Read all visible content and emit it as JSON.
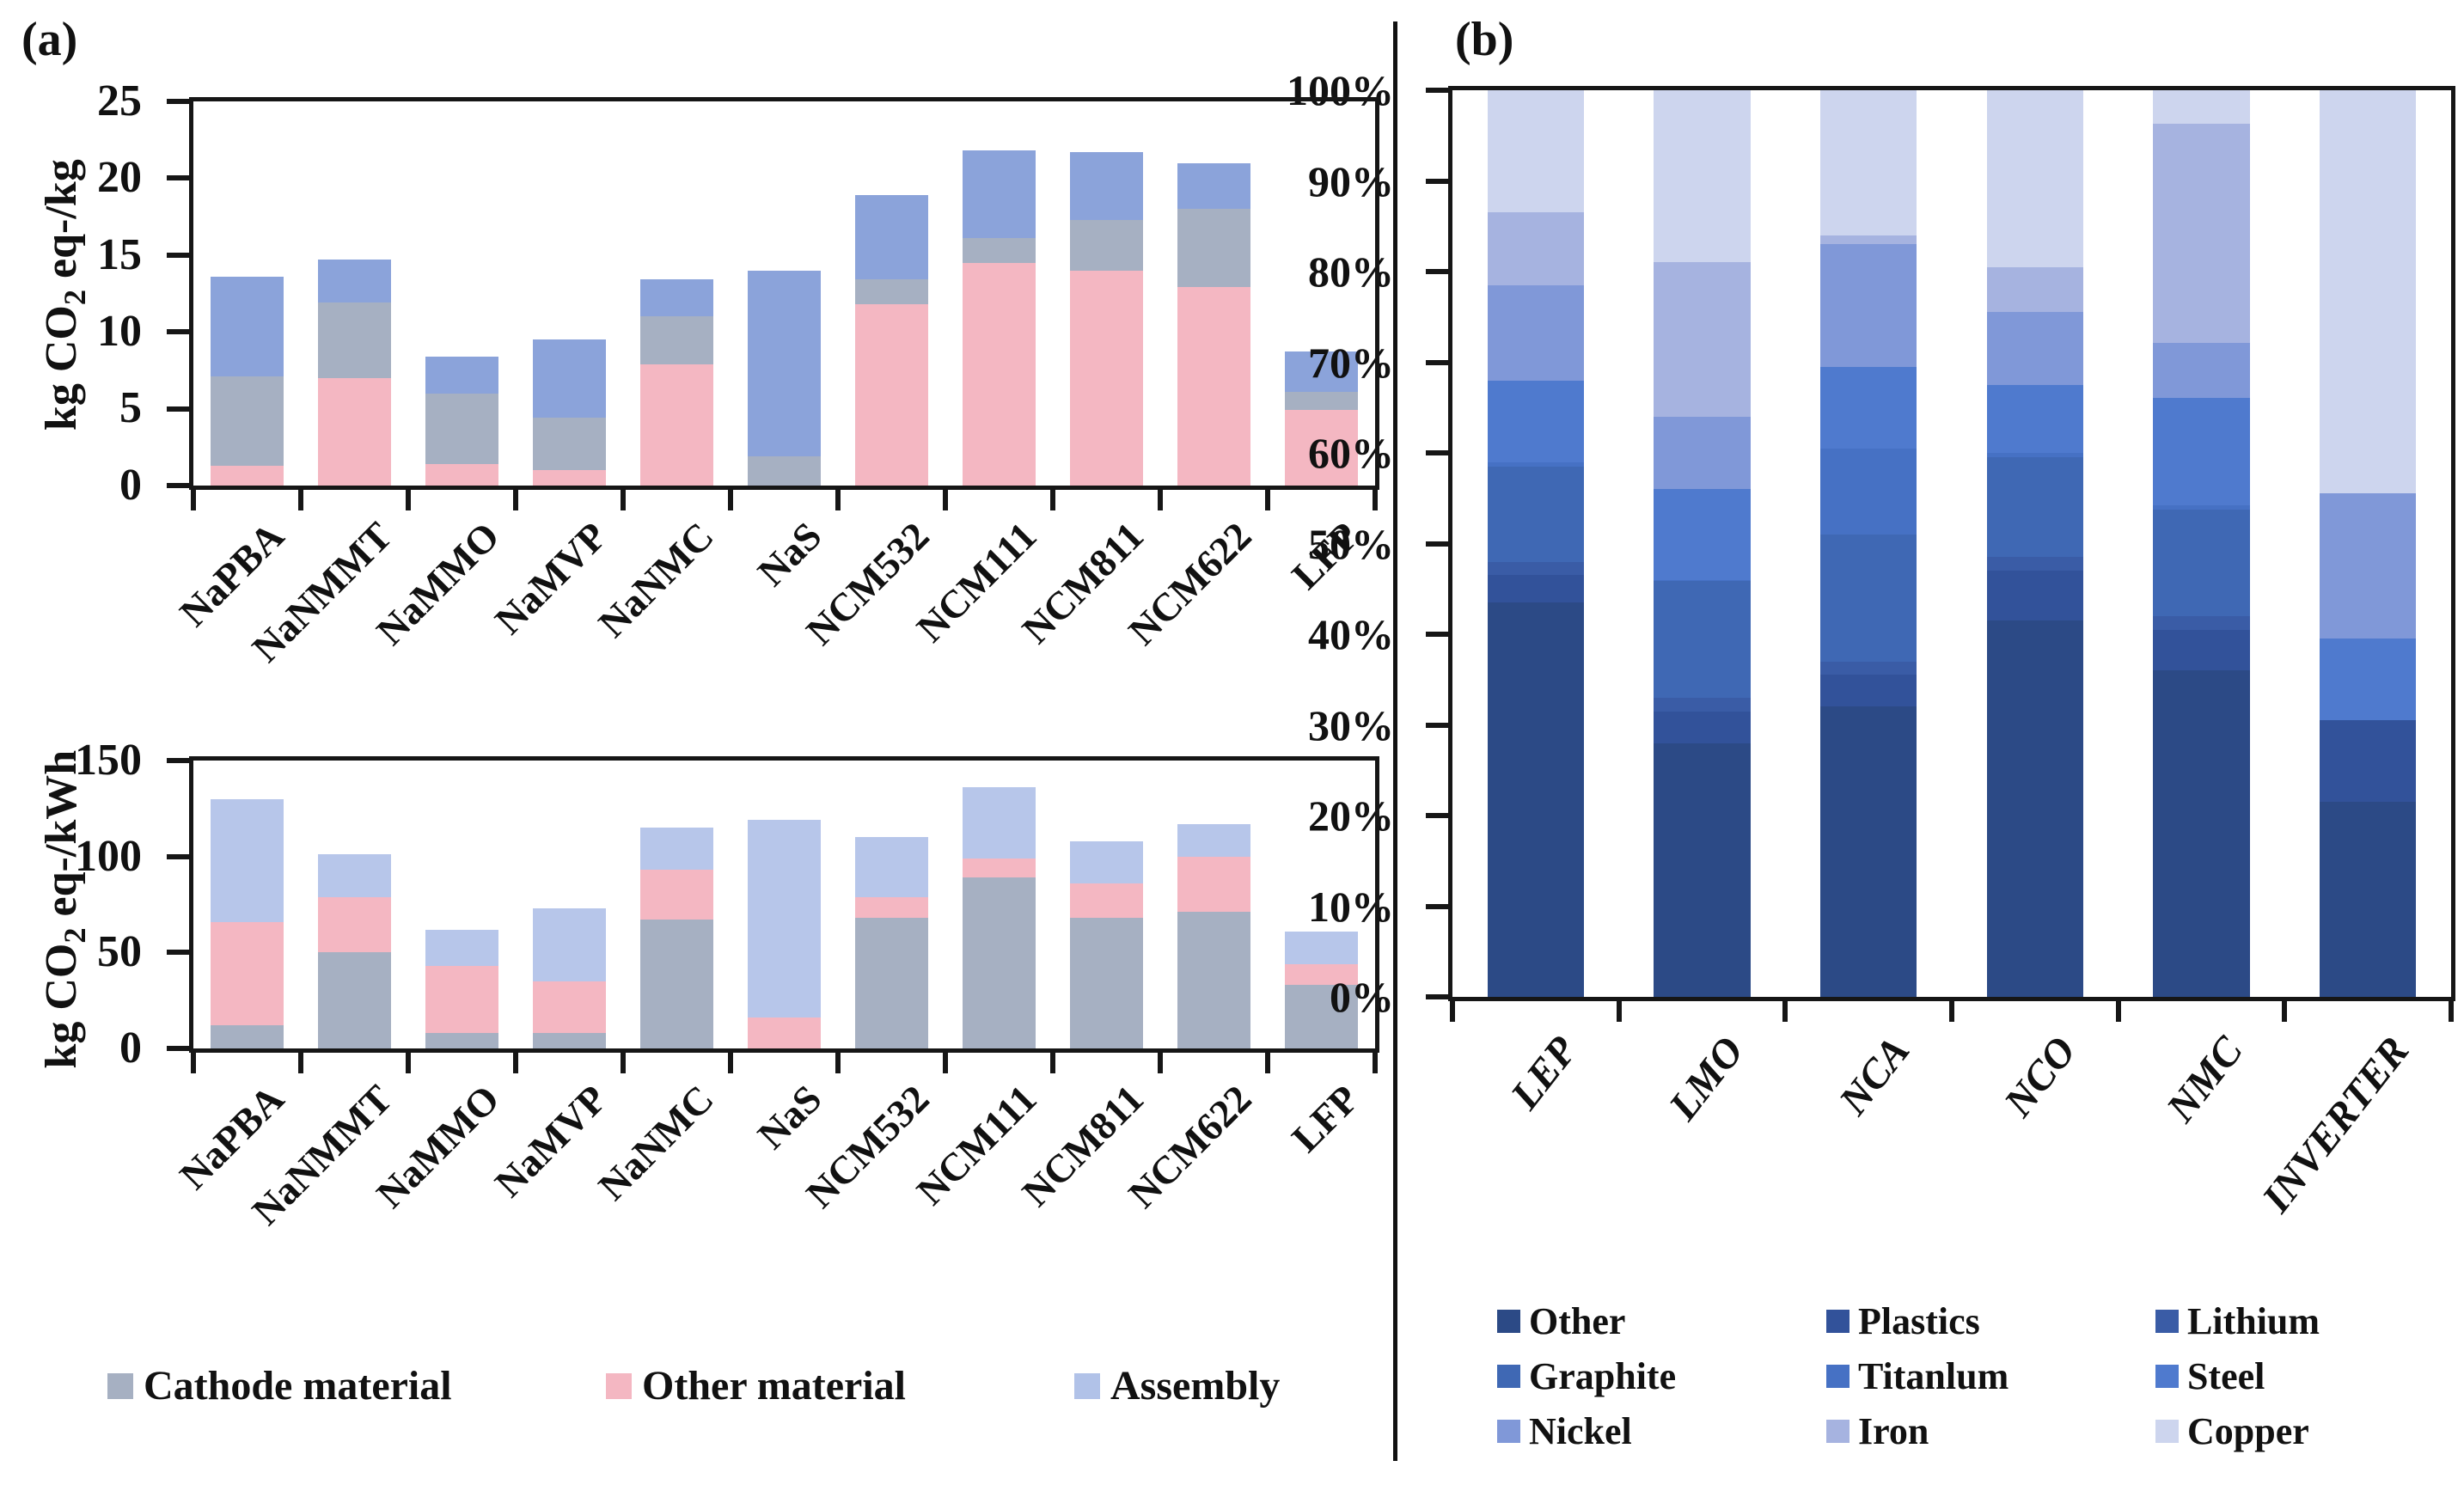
{
  "figure": {
    "panel_a_label": "(a)",
    "panel_b_label": "(b)"
  },
  "labels": {
    "y_top": {
      "pre": "kg CO",
      "sub": "2",
      "post": " eq-/kg"
    },
    "y_bottom": {
      "pre": "kg CO",
      "sub": "2",
      "post": " eq-/kWh"
    }
  },
  "panel_a_legend": [
    {
      "name": "Cathode material",
      "color": "#a6b0c2"
    },
    {
      "name": "Other material",
      "color": "#f4b7c2"
    },
    {
      "name": "Assembly",
      "color": "#b1c2e8"
    }
  ],
  "chart_data": [
    {
      "id": "emissions-per-kg",
      "type": "bar",
      "stacked": true,
      "title": "",
      "xlabel": "",
      "ylabel": "kg CO2 eq-/kg",
      "ylim": [
        0,
        25
      ],
      "grid": false,
      "y_ticks": [
        {
          "value": 0,
          "label": "0"
        },
        {
          "value": 5,
          "label": "5"
        },
        {
          "value": 10,
          "label": "10"
        },
        {
          "value": 15,
          "label": "15"
        },
        {
          "value": 20,
          "label": "20"
        },
        {
          "value": 25,
          "label": "25"
        }
      ],
      "categories": [
        "NaPBA",
        "NaNMMT",
        "NaMMO",
        "NaMVP",
        "NaNMC",
        "NaS",
        "NCM532",
        "NCM111",
        "NCM811",
        "NCM622",
        "LFP"
      ],
      "stack_order": "bottom to top: Other material, Cathode material, Assembly",
      "series": [
        {
          "name": "Other material",
          "color": "#f4b7c2",
          "values": [
            1.3,
            7.0,
            1.4,
            1.0,
            7.9,
            0,
            11.8,
            14.5,
            14.0,
            12.9,
            4.9
          ]
        },
        {
          "name": "Cathode material",
          "color": "#a6b0c2",
          "values": [
            5.8,
            4.9,
            4.6,
            3.4,
            3.1,
            1.9,
            1.6,
            1.6,
            3.3,
            5.1,
            1.2
          ]
        },
        {
          "name": "Assembly",
          "color": "#8ba3da",
          "values": [
            6.5,
            2.8,
            2.4,
            5.1,
            2.4,
            12.1,
            5.5,
            5.7,
            4.4,
            3.0,
            2.6
          ]
        }
      ],
      "bar_totals": [
        13.6,
        14.7,
        8.4,
        9.5,
        13.4,
        14.0,
        18.9,
        21.8,
        21.7,
        21.0,
        8.7
      ]
    },
    {
      "id": "emissions-per-kwh",
      "type": "bar",
      "stacked": true,
      "title": "",
      "xlabel": "",
      "ylabel": "kg CO2 eq-/kWh",
      "ylim": [
        0,
        150
      ],
      "grid": false,
      "y_ticks": [
        {
          "value": 0,
          "label": "0"
        },
        {
          "value": 50,
          "label": "50"
        },
        {
          "value": 100,
          "label": "100"
        },
        {
          "value": 150,
          "label": "150"
        }
      ],
      "categories": [
        "NaPBA",
        "NaNMMT",
        "NaMMO",
        "NaMVP",
        "NaNMC",
        "NaS",
        "NCM532",
        "NCM111",
        "NCM811",
        "NCM622",
        "LFP"
      ],
      "stack_order": "bottom to top: Cathode material, Other material, Assembly",
      "series": [
        {
          "name": "Cathode material",
          "color": "#a6b0c2",
          "values": [
            12,
            50,
            8,
            8,
            67,
            0,
            68,
            89,
            68,
            71,
            33
          ]
        },
        {
          "name": "Other material",
          "color": "#f4b7c2",
          "values": [
            54,
            29,
            35,
            27,
            26,
            16,
            11,
            10,
            18,
            29,
            11
          ]
        },
        {
          "name": "Assembly",
          "color": "#b7c6ea",
          "values": [
            64,
            22,
            19,
            38,
            22,
            103,
            31,
            37,
            22,
            17,
            17
          ]
        }
      ],
      "bar_totals": [
        130,
        101,
        62,
        73,
        115,
        119,
        110,
        136,
        108,
        117,
        61
      ]
    },
    {
      "id": "material-composition-percent",
      "type": "bar",
      "stacked": true,
      "percent": true,
      "title": "",
      "xlabel": "",
      "ylabel": "",
      "ylim": [
        0,
        100
      ],
      "grid": false,
      "y_ticks": [
        {
          "value": 0,
          "label": "0%"
        },
        {
          "value": 10,
          "label": "10%"
        },
        {
          "value": 20,
          "label": "20%"
        },
        {
          "value": 30,
          "label": "30%"
        },
        {
          "value": 40,
          "label": "40%"
        },
        {
          "value": 50,
          "label": "50%"
        },
        {
          "value": 60,
          "label": "60%"
        },
        {
          "value": 70,
          "label": "70%"
        },
        {
          "value": 80,
          "label": "80%"
        },
        {
          "value": 90,
          "label": "90%"
        },
        {
          "value": 100,
          "label": "100%"
        }
      ],
      "categories": [
        "LEP",
        "LMO",
        "NCA",
        "NCO",
        "NMC",
        "INVERTER"
      ],
      "stack_order": "bottom to top: Other, Plastics, Lithium, Graphite, Titanlum, Steel, Nickel, Iron, Copper",
      "series": [
        {
          "name": "Other",
          "color": "#2c4a86",
          "values": [
            43.5,
            28.0,
            32.0,
            41.5,
            36.0,
            21.5
          ]
        },
        {
          "name": "Plastics",
          "color": "#32529a",
          "values": [
            3.0,
            3.5,
            3.5,
            5.5,
            4.5,
            9.0
          ]
        },
        {
          "name": "Lithium",
          "color": "#3a5ca6",
          "values": [
            1.5,
            1.5,
            1.5,
            1.5,
            1.5,
            0
          ]
        },
        {
          "name": "Graphite",
          "color": "#3f68b4",
          "values": [
            10.5,
            12.9,
            14.0,
            11.0,
            11.7,
            0
          ]
        },
        {
          "name": "Titanlum",
          "color": "#4671c4",
          "values": [
            0.5,
            0.1,
            9.5,
            0.5,
            0.5,
            0
          ]
        },
        {
          "name": "Steel",
          "color": "#4f7ace",
          "values": [
            9.0,
            10.0,
            9.0,
            7.5,
            11.9,
            9.0
          ]
        },
        {
          "name": "Nickel",
          "color": "#8098d8",
          "values": [
            10.5,
            8.0,
            13.5,
            8.0,
            6.0,
            16.0
          ]
        },
        {
          "name": "Iron",
          "color": "#a6b3e0",
          "values": [
            8.0,
            17.0,
            1.0,
            5.0,
            24.2,
            0
          ]
        },
        {
          "name": "Copper",
          "color": "#cdd5ee",
          "values": [
            13.5,
            19.0,
            16.0,
            19.5,
            3.7,
            44.5
          ]
        }
      ]
    }
  ]
}
